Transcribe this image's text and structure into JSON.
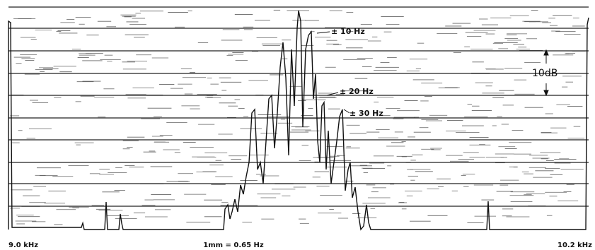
{
  "annotations": {
    "peak_10": "± 10 Hz",
    "peak_20": "± 20 Hz",
    "peak_30": "± 30 Hz",
    "scale": "10dB"
  },
  "x_axis": {
    "left": "9.0 kHz",
    "center": "1mm = 0.65 Hz",
    "right": "10.2 kHz"
  }
}
